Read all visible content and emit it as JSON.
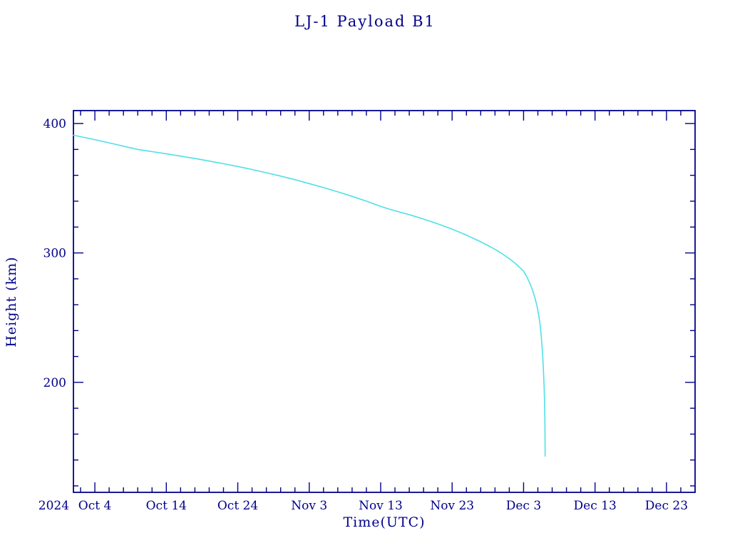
{
  "page": {
    "background": "#ffffff"
  },
  "colors": {
    "axis": "#00008B",
    "text": "#00008B",
    "curve": "#4FE0E6"
  },
  "chart_data": {
    "type": "line",
    "title": "LJ-1 Payload B1",
    "xlabel": "Time(UTC)",
    "ylabel": "Height (km)",
    "grid": false,
    "legend": "none",
    "x_unit": "days since 2024-10-01",
    "xlim": [
      0,
      87
    ],
    "ylim": [
      115,
      410
    ],
    "year_label": "2024",
    "x_major_ticks": [
      {
        "day": 3,
        "label": "Oct  4"
      },
      {
        "day": 13,
        "label": "Oct 14"
      },
      {
        "day": 23,
        "label": "Oct 24"
      },
      {
        "day": 33,
        "label": "Nov  3"
      },
      {
        "day": 43,
        "label": "Nov 13"
      },
      {
        "day": 53,
        "label": "Nov 23"
      },
      {
        "day": 63,
        "label": "Dec  3"
      },
      {
        "day": 73,
        "label": "Dec 13"
      },
      {
        "day": 83,
        "label": "Dec 23"
      }
    ],
    "x_minor_start": 1,
    "x_minor_step": 2,
    "y_major_ticks": [
      {
        "value": 200,
        "label": "200"
      },
      {
        "value": 300,
        "label": "300"
      },
      {
        "value": 400,
        "label": "400"
      }
    ],
    "y_minor_start": 120,
    "y_minor_step": 20,
    "series": [
      {
        "name": "LJ-1 Payload B1 height",
        "color": "#4FE0E6",
        "points": [
          [
            0,
            391
          ],
          [
            2,
            388.7
          ],
          [
            4,
            386.3
          ],
          [
            6,
            383.8
          ],
          [
            8,
            381.2
          ],
          [
            9,
            380.0
          ],
          [
            11,
            378.3
          ],
          [
            13,
            376.6
          ],
          [
            15,
            374.8
          ],
          [
            17,
            373.0
          ],
          [
            19,
            371.0
          ],
          [
            21,
            369.0
          ],
          [
            23,
            366.8
          ],
          [
            25,
            364.5
          ],
          [
            27,
            362.0
          ],
          [
            29,
            359.4
          ],
          [
            31,
            356.6
          ],
          [
            33,
            353.6
          ],
          [
            35,
            350.5
          ],
          [
            37,
            347.2
          ],
          [
            39,
            343.7
          ],
          [
            41,
            340.0
          ],
          [
            43,
            336.0
          ],
          [
            44,
            334.2
          ],
          [
            45,
            332.6
          ],
          [
            47,
            329.6
          ],
          [
            49,
            326.2
          ],
          [
            51,
            322.5
          ],
          [
            53,
            318.4
          ],
          [
            55,
            313.8
          ],
          [
            57,
            308.6
          ],
          [
            58,
            305.8
          ],
          [
            59,
            302.8
          ],
          [
            60,
            299.4
          ],
          [
            61,
            295.6
          ],
          [
            62,
            291.2
          ],
          [
            63,
            286.0
          ],
          [
            63.5,
            281.0
          ],
          [
            64,
            275.0
          ],
          [
            64.3,
            270.5
          ],
          [
            64.6,
            265.0
          ],
          [
            64.9,
            258.5
          ],
          [
            65.1,
            252.5
          ],
          [
            65.3,
            245.0
          ],
          [
            65.45,
            237.0
          ],
          [
            65.6,
            227.0
          ],
          [
            65.7,
            218.0
          ],
          [
            65.8,
            207.0
          ],
          [
            65.88,
            196.0
          ],
          [
            65.94,
            184.0
          ],
          [
            65.98,
            172.0
          ],
          [
            66.0,
            160.0
          ],
          [
            66.02,
            143.0
          ]
        ]
      }
    ]
  }
}
